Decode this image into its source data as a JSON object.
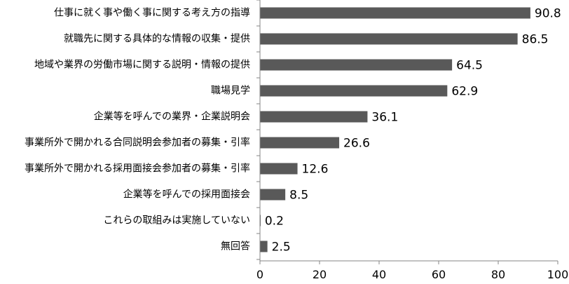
{
  "chart_data": {
    "type": "bar",
    "orientation": "horizontal",
    "categories": [
      "仕事に就く事や働く事に関する考え方の指導",
      "就職先に関する具体的な情報の収集・提供",
      "地域や業界の労働市場に関する説明・情報の提供",
      "職場見学",
      "企業等を呼んでの業界・企業説明会",
      "事業所外で開かれる合同説明会参加者の募集・引率",
      "事業所外で開かれる採用面接会参加者の募集・引率",
      "企業等を呼んでの採用面接会",
      "これらの取組みは実施していない",
      "無回答"
    ],
    "values": [
      90.8,
      86.5,
      64.5,
      62.9,
      36.1,
      26.6,
      12.6,
      8.5,
      0.2,
      2.5
    ],
    "value_labels": [
      "90.8",
      "86.5",
      "64.5",
      "62.9",
      "36.1",
      "26.6",
      "12.6",
      "8.5",
      "0.2",
      "2.5"
    ],
    "xlim": [
      0,
      100
    ],
    "x_ticks": [
      0,
      20,
      40,
      60,
      80,
      100
    ],
    "x_tick_labels": [
      "0",
      "20",
      "40",
      "60",
      "80",
      "100"
    ],
    "grid": false,
    "legend": "none",
    "title": "",
    "xlabel": "",
    "ylabel": "",
    "bar_color": "#595959"
  }
}
